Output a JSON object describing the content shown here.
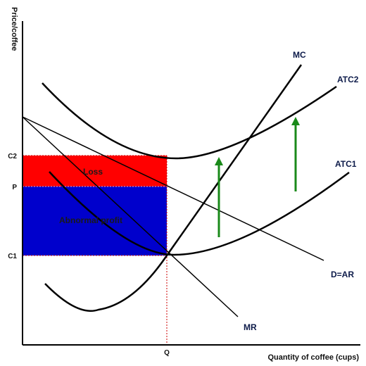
{
  "diagram": {
    "y_axis_label": "Price/coffee",
    "x_axis_label": "Quantity of coffee (cups)",
    "price_ticks": {
      "c2": "C2",
      "p": "P",
      "c1": "C1"
    },
    "quantity_tick": "Q",
    "curves": {
      "mc": "MC",
      "atc2": "ATC2",
      "atc1": "ATC1",
      "demand": "D=AR",
      "mr": "MR"
    },
    "areas": {
      "loss": {
        "label": "Loss",
        "color": "#ff0000"
      },
      "profit": {
        "label": "Abnormal profit",
        "color": "#0000cc"
      }
    },
    "colors": {
      "curves": "#000000",
      "arrows": "#1a8a1a",
      "guides": "#cc0000"
    }
  }
}
